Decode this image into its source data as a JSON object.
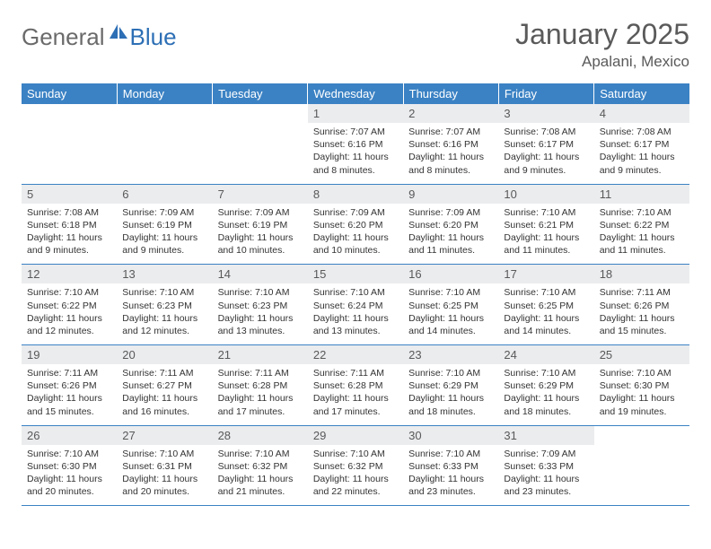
{
  "brand": {
    "part1": "General",
    "part2": "Blue"
  },
  "title": "January 2025",
  "location": "Apalani, Mexico",
  "colors": {
    "header_bg": "#3b82c4",
    "header_fg": "#ffffff",
    "daynum_bg": "#ebecee",
    "daynum_fg": "#595959",
    "text": "#333333",
    "rule": "#3b82c4",
    "logo_gray": "#6a6a6a",
    "logo_blue": "#2d6fb5"
  },
  "columns": [
    "Sunday",
    "Monday",
    "Tuesday",
    "Wednesday",
    "Thursday",
    "Friday",
    "Saturday"
  ],
  "weeks": [
    [
      null,
      null,
      null,
      {
        "n": "1",
        "sr": "7:07 AM",
        "ss": "6:16 PM",
        "dl": "11 hours and 8 minutes."
      },
      {
        "n": "2",
        "sr": "7:07 AM",
        "ss": "6:16 PM",
        "dl": "11 hours and 8 minutes."
      },
      {
        "n": "3",
        "sr": "7:08 AM",
        "ss": "6:17 PM",
        "dl": "11 hours and 9 minutes."
      },
      {
        "n": "4",
        "sr": "7:08 AM",
        "ss": "6:17 PM",
        "dl": "11 hours and 9 minutes."
      }
    ],
    [
      {
        "n": "5",
        "sr": "7:08 AM",
        "ss": "6:18 PM",
        "dl": "11 hours and 9 minutes."
      },
      {
        "n": "6",
        "sr": "7:09 AM",
        "ss": "6:19 PM",
        "dl": "11 hours and 9 minutes."
      },
      {
        "n": "7",
        "sr": "7:09 AM",
        "ss": "6:19 PM",
        "dl": "11 hours and 10 minutes."
      },
      {
        "n": "8",
        "sr": "7:09 AM",
        "ss": "6:20 PM",
        "dl": "11 hours and 10 minutes."
      },
      {
        "n": "9",
        "sr": "7:09 AM",
        "ss": "6:20 PM",
        "dl": "11 hours and 11 minutes."
      },
      {
        "n": "10",
        "sr": "7:10 AM",
        "ss": "6:21 PM",
        "dl": "11 hours and 11 minutes."
      },
      {
        "n": "11",
        "sr": "7:10 AM",
        "ss": "6:22 PM",
        "dl": "11 hours and 11 minutes."
      }
    ],
    [
      {
        "n": "12",
        "sr": "7:10 AM",
        "ss": "6:22 PM",
        "dl": "11 hours and 12 minutes."
      },
      {
        "n": "13",
        "sr": "7:10 AM",
        "ss": "6:23 PM",
        "dl": "11 hours and 12 minutes."
      },
      {
        "n": "14",
        "sr": "7:10 AM",
        "ss": "6:23 PM",
        "dl": "11 hours and 13 minutes."
      },
      {
        "n": "15",
        "sr": "7:10 AM",
        "ss": "6:24 PM",
        "dl": "11 hours and 13 minutes."
      },
      {
        "n": "16",
        "sr": "7:10 AM",
        "ss": "6:25 PM",
        "dl": "11 hours and 14 minutes."
      },
      {
        "n": "17",
        "sr": "7:10 AM",
        "ss": "6:25 PM",
        "dl": "11 hours and 14 minutes."
      },
      {
        "n": "18",
        "sr": "7:11 AM",
        "ss": "6:26 PM",
        "dl": "11 hours and 15 minutes."
      }
    ],
    [
      {
        "n": "19",
        "sr": "7:11 AM",
        "ss": "6:26 PM",
        "dl": "11 hours and 15 minutes."
      },
      {
        "n": "20",
        "sr": "7:11 AM",
        "ss": "6:27 PM",
        "dl": "11 hours and 16 minutes."
      },
      {
        "n": "21",
        "sr": "7:11 AM",
        "ss": "6:28 PM",
        "dl": "11 hours and 17 minutes."
      },
      {
        "n": "22",
        "sr": "7:11 AM",
        "ss": "6:28 PM",
        "dl": "11 hours and 17 minutes."
      },
      {
        "n": "23",
        "sr": "7:10 AM",
        "ss": "6:29 PM",
        "dl": "11 hours and 18 minutes."
      },
      {
        "n": "24",
        "sr": "7:10 AM",
        "ss": "6:29 PM",
        "dl": "11 hours and 18 minutes."
      },
      {
        "n": "25",
        "sr": "7:10 AM",
        "ss": "6:30 PM",
        "dl": "11 hours and 19 minutes."
      }
    ],
    [
      {
        "n": "26",
        "sr": "7:10 AM",
        "ss": "6:30 PM",
        "dl": "11 hours and 20 minutes."
      },
      {
        "n": "27",
        "sr": "7:10 AM",
        "ss": "6:31 PM",
        "dl": "11 hours and 20 minutes."
      },
      {
        "n": "28",
        "sr": "7:10 AM",
        "ss": "6:32 PM",
        "dl": "11 hours and 21 minutes."
      },
      {
        "n": "29",
        "sr": "7:10 AM",
        "ss": "6:32 PM",
        "dl": "11 hours and 22 minutes."
      },
      {
        "n": "30",
        "sr": "7:10 AM",
        "ss": "6:33 PM",
        "dl": "11 hours and 23 minutes."
      },
      {
        "n": "31",
        "sr": "7:09 AM",
        "ss": "6:33 PM",
        "dl": "11 hours and 23 minutes."
      },
      null
    ]
  ],
  "labels": {
    "sunrise": "Sunrise: ",
    "sunset": "Sunset: ",
    "daylight": "Daylight: "
  }
}
